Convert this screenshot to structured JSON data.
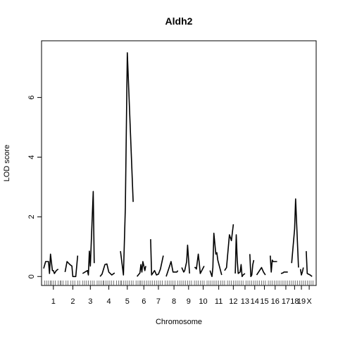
{
  "chart_data": {
    "type": "line",
    "title": "Aldh2",
    "xlabel": "Chromosome",
    "ylabel": "LOD score",
    "ylim": [
      -0.3,
      7.9
    ],
    "y_ticks": [
      0,
      2,
      4,
      6
    ],
    "grid": false,
    "legend": "none",
    "line_color": "#000000",
    "chromosomes": [
      {
        "label": "1",
        "span": [
          0,
          20
        ],
        "points": [
          [
            0,
            0.27
          ],
          [
            2,
            0.5
          ],
          [
            5,
            0.5
          ],
          [
            6,
            0.1
          ],
          [
            7,
            0.75
          ],
          [
            9,
            0.2
          ],
          [
            10,
            0.2
          ],
          [
            11,
            0.1
          ],
          [
            13,
            0.2
          ],
          [
            15,
            0.25
          ]
        ]
      },
      {
        "label": "2",
        "span": [
          22,
          38
        ],
        "points": [
          [
            22,
            0.15
          ],
          [
            24,
            0.5
          ],
          [
            27,
            0.4
          ],
          [
            29,
            0.35
          ],
          [
            30,
            0.0
          ],
          [
            33,
            0.0
          ],
          [
            35,
            0.7
          ]
        ]
      },
      {
        "label": "3",
        "span": [
          40,
          56
        ],
        "points": [
          [
            40,
            0.1
          ],
          [
            45,
            0.2
          ],
          [
            46,
            0.05
          ],
          [
            47,
            0.85
          ],
          [
            48,
            0.35
          ],
          [
            51,
            2.85
          ],
          [
            52,
            0.45
          ]
        ]
      },
      {
        "label": "4",
        "span": [
          58,
          76
        ],
        "points": [
          [
            58,
            0.0
          ],
          [
            60,
            0.08
          ],
          [
            63,
            0.4
          ],
          [
            65,
            0.42
          ],
          [
            67,
            0.15
          ],
          [
            70,
            0.05
          ],
          [
            73,
            0.12
          ]
        ]
      },
      {
        "label": "5",
        "span": [
          78,
          94
        ],
        "points": [
          [
            79,
            0.85
          ],
          [
            82,
            0.05
          ],
          [
            84,
            2.3
          ],
          [
            86,
            7.5
          ],
          [
            92,
            2.5
          ]
        ]
      },
      {
        "label": "6",
        "span": [
          96,
          110
        ],
        "points": [
          [
            96,
            0.0
          ],
          [
            99,
            0.12
          ],
          [
            100,
            0.4
          ],
          [
            101,
            0.15
          ],
          [
            102,
            0.5
          ],
          [
            104,
            0.2
          ],
          [
            105,
            0.35
          ]
        ]
      },
      {
        "label": "7",
        "span": [
          110,
          126
        ],
        "points": [
          [
            110,
            1.25
          ],
          [
            111,
            0.05
          ],
          [
            114,
            0.2
          ],
          [
            116,
            0.05
          ],
          [
            118,
            0.08
          ],
          [
            120,
            0.25
          ],
          [
            123,
            0.7
          ]
        ]
      },
      {
        "label": "8",
        "span": [
          126,
          142
        ],
        "points": [
          [
            126,
            0.0
          ],
          [
            127,
            0.1
          ],
          [
            129,
            0.3
          ],
          [
            131,
            0.5
          ],
          [
            133,
            0.15
          ],
          [
            137,
            0.15
          ],
          [
            138,
            0.2
          ]
        ]
      },
      {
        "label": "9",
        "span": [
          142,
          156
        ],
        "points": [
          [
            142,
            0.3
          ],
          [
            144,
            0.15
          ],
          [
            145,
            0.2
          ],
          [
            147,
            0.5
          ],
          [
            148,
            1.05
          ],
          [
            150,
            0.1
          ]
        ]
      },
      {
        "label": "10",
        "span": [
          156,
          172
        ],
        "points": [
          [
            155,
            0.3
          ],
          [
            156,
            0.3
          ],
          [
            157,
            0.25
          ],
          [
            159,
            0.75
          ],
          [
            160,
            0.45
          ],
          [
            161,
            0.1
          ],
          [
            165,
            0.35
          ]
        ]
      },
      {
        "label": "11",
        "span": [
          172,
          188
        ],
        "points": [
          [
            171,
            0.2
          ],
          [
            173,
            0.0
          ],
          [
            174,
            0.3
          ],
          [
            175,
            1.45
          ],
          [
            177,
            0.75
          ],
          [
            178,
            0.8
          ],
          [
            179,
            0.55
          ],
          [
            183,
            0.05
          ]
        ]
      },
      {
        "label": "12",
        "span": [
          188,
          202
        ],
        "points": [
          [
            186,
            0.2
          ],
          [
            188,
            0.3
          ],
          [
            191,
            1.4
          ],
          [
            193,
            1.2
          ],
          [
            195,
            1.75
          ]
        ]
      },
      {
        "label": "13",
        "span": [
          202,
          212
        ],
        "points": [
          [
            197,
            0.1
          ],
          [
            198,
            1.4
          ],
          [
            199,
            0.55
          ],
          [
            200,
            0.1
          ],
          [
            202,
            0.15
          ],
          [
            203,
            0.4
          ],
          [
            204,
            0.0
          ],
          [
            205,
            0.05
          ],
          [
            207,
            0.1
          ]
        ]
      },
      {
        "label": "14",
        "span": [
          212,
          222
        ],
        "points": [
          [
            212,
            0.75
          ],
          [
            213,
            0.0
          ],
          [
            214,
            0.05
          ],
          [
            215,
            0.4
          ],
          [
            216,
            0.55
          ]
        ]
      },
      {
        "label": "15",
        "span": [
          222,
          232
        ],
        "points": [
          [
            219,
            0.05
          ],
          [
            222,
            0.2
          ],
          [
            224,
            0.3
          ],
          [
            226,
            0.15
          ],
          [
            228,
            0.05
          ]
        ]
      },
      {
        "label": "16",
        "span": [
          232,
          244
        ],
        "points": [
          [
            233,
            0.7
          ],
          [
            234,
            0.15
          ],
          [
            235,
            0.55
          ],
          [
            236,
            0.5
          ],
          [
            240,
            0.5
          ]
        ]
      },
      {
        "label": "17",
        "span": [
          244,
          254
        ],
        "points": [
          [
            244,
            0.1
          ],
          [
            246,
            0.12
          ],
          [
            247,
            0.15
          ],
          [
            251,
            0.15
          ]
        ]
      },
      {
        "label": "18",
        "span": [
          254,
          262
        ],
        "points": [
          [
            255,
            0.45
          ],
          [
            258,
            1.6
          ],
          [
            259,
            2.6
          ],
          [
            262,
            0.3
          ]
        ]
      },
      {
        "label": "19",
        "span": [
          262,
          268
        ],
        "points": [
          [
            264,
            0.25
          ],
          [
            265,
            0.05
          ],
          [
            266,
            0.15
          ],
          [
            267,
            0.3
          ]
        ]
      },
      {
        "label": "X",
        "span": [
          268,
          278
        ],
        "points": [
          [
            270,
            0.85
          ],
          [
            271,
            0.1
          ],
          [
            274,
            0.05
          ],
          [
            276,
            0.0
          ]
        ]
      }
    ],
    "marker_positions": [
      1,
      3,
      5,
      7,
      8,
      10,
      12,
      15,
      17,
      18,
      20,
      23,
      25,
      28,
      30,
      32,
      35,
      37,
      40,
      42,
      44,
      46,
      48,
      50,
      52,
      55,
      57,
      59,
      61,
      62,
      64,
      66,
      68,
      70,
      72,
      75,
      77,
      79,
      80,
      82,
      84,
      86,
      88,
      90,
      92,
      95,
      97,
      99,
      100,
      102,
      104,
      106,
      108,
      110,
      112,
      114,
      116,
      118,
      120,
      122,
      125,
      127,
      129,
      131,
      133,
      135,
      138,
      140,
      142,
      144,
      146,
      148,
      150,
      152,
      155,
      157,
      159,
      161,
      163,
      165,
      168,
      170,
      172,
      174,
      176,
      178,
      180,
      182,
      184,
      186,
      189,
      191,
      193,
      195,
      197,
      199,
      201,
      203,
      205,
      208,
      210,
      212,
      214,
      216,
      218,
      220,
      222,
      224,
      226,
      228,
      231,
      233,
      235,
      237,
      239,
      241,
      243,
      245,
      247,
      249,
      251,
      253,
      255,
      257,
      259,
      261,
      263,
      265,
      267,
      269,
      271,
      273,
      275,
      277
    ]
  }
}
